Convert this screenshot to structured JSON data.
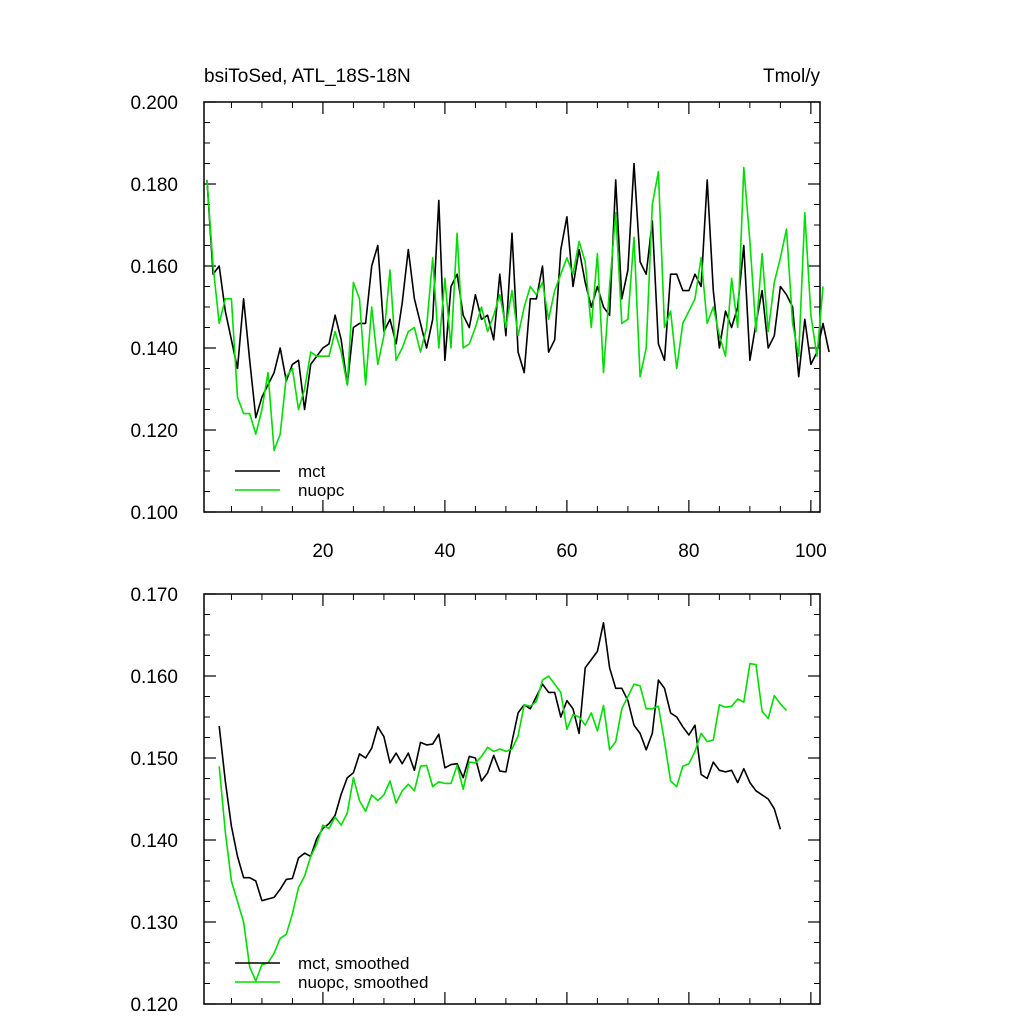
{
  "chart_data": [
    {
      "type": "line",
      "title": "bsiToSed, ATL_18S-18N",
      "units": "Tmol/y",
      "xlim": [
        0.5,
        101.5
      ],
      "ylim": [
        0.1,
        0.2
      ],
      "x_ticks": [
        20,
        40,
        60,
        80,
        100
      ],
      "y_ticks": [
        "0.100",
        "0.120",
        "0.140",
        "0.160",
        "0.180",
        "0.200"
      ],
      "legend_position": "bottom-left",
      "series": [
        {
          "name": "mct",
          "color": "#000000",
          "x_start": 1,
          "values": [
            0.181,
            0.158,
            0.16,
            0.149,
            0.142,
            0.135,
            0.152,
            0.137,
            0.123,
            0.128,
            0.131,
            0.134,
            0.14,
            0.132,
            0.136,
            0.137,
            0.125,
            0.136,
            0.138,
            0.14,
            0.141,
            0.148,
            0.142,
            0.131,
            0.145,
            0.146,
            0.146,
            0.16,
            0.165,
            0.144,
            0.147,
            0.141,
            0.151,
            0.164,
            0.152,
            0.146,
            0.14,
            0.147,
            0.176,
            0.137,
            0.155,
            0.158,
            0.148,
            0.145,
            0.153,
            0.147,
            0.148,
            0.142,
            0.158,
            0.143,
            0.168,
            0.139,
            0.134,
            0.152,
            0.152,
            0.16,
            0.139,
            0.142,
            0.164,
            0.172,
            0.155,
            0.164,
            0.156,
            0.15,
            0.155,
            0.15,
            0.148,
            0.181,
            0.152,
            0.159,
            0.185,
            0.161,
            0.158,
            0.171,
            0.141,
            0.137,
            0.158,
            0.158,
            0.154,
            0.154,
            0.158,
            0.155,
            0.181,
            0.154,
            0.14,
            0.149,
            0.145,
            0.15,
            0.165,
            0.137,
            0.146,
            0.154,
            0.14,
            0.143,
            0.155,
            0.153,
            0.15,
            0.133,
            0.147,
            0.136,
            0.139,
            0.146,
            0.139
          ]
        },
        {
          "name": "nuopc",
          "color": "#00dd00",
          "x_start": 1,
          "values": [
            0.181,
            0.16,
            0.146,
            0.152,
            0.152,
            0.128,
            0.124,
            0.124,
            0.119,
            0.125,
            0.134,
            0.115,
            0.119,
            0.133,
            0.135,
            0.125,
            0.13,
            0.139,
            0.138,
            0.138,
            0.138,
            0.144,
            0.139,
            0.131,
            0.156,
            0.152,
            0.131,
            0.15,
            0.136,
            0.143,
            0.159,
            0.137,
            0.14,
            0.144,
            0.145,
            0.139,
            0.145,
            0.162,
            0.14,
            0.157,
            0.14,
            0.168,
            0.14,
            0.141,
            0.145,
            0.15,
            0.144,
            0.148,
            0.153,
            0.145,
            0.154,
            0.143,
            0.15,
            0.155,
            0.153,
            0.156,
            0.147,
            0.154,
            0.158,
            0.162,
            0.158,
            0.166,
            0.161,
            0.145,
            0.163,
            0.134,
            0.155,
            0.173,
            0.146,
            0.147,
            0.167,
            0.133,
            0.14,
            0.175,
            0.183,
            0.145,
            0.149,
            0.135,
            0.146,
            0.149,
            0.152,
            0.162,
            0.146,
            0.15,
            0.143,
            0.138,
            0.157,
            0.145,
            0.184,
            0.166,
            0.144,
            0.163,
            0.144,
            0.156,
            0.162,
            0.169,
            0.146,
            0.138,
            0.173,
            0.148,
            0.138,
            0.155
          ]
        }
      ]
    },
    {
      "type": "line",
      "xlim": [
        0.5,
        101.5
      ],
      "ylim": [
        0.12,
        0.17
      ],
      "y_ticks": [
        "0.120",
        "0.130",
        "0.140",
        "0.150",
        "0.160",
        "0.170"
      ],
      "legend_position": "bottom-left",
      "series": [
        {
          "name": "mct, smoothed",
          "color": "#000000",
          "x_start": 3,
          "values": [
            0.1539,
            0.1472,
            0.1417,
            0.138,
            0.1354,
            0.1354,
            0.135,
            0.1326,
            0.1328,
            0.133,
            0.134,
            0.1352,
            0.1353,
            0.1378,
            0.1384,
            0.138,
            0.1402,
            0.1414,
            0.142,
            0.143,
            0.1456,
            0.1476,
            0.1482,
            0.1505,
            0.15,
            0.1512,
            0.1538,
            0.1526,
            0.1494,
            0.1506,
            0.1493,
            0.1506,
            0.1485,
            0.1519,
            0.1516,
            0.1517,
            0.1529,
            0.1488,
            0.1492,
            0.1493,
            0.1476,
            0.1502,
            0.15,
            0.1472,
            0.1482,
            0.1503,
            0.1484,
            0.1483,
            0.152,
            0.1555,
            0.1565,
            0.156,
            0.1575,
            0.159,
            0.158,
            0.158,
            0.155,
            0.157,
            0.156,
            0.153,
            0.161,
            0.162,
            0.163,
            0.1665,
            0.161,
            0.1585,
            0.1585,
            0.157,
            0.154,
            0.153,
            0.151,
            0.153,
            0.1595,
            0.1585,
            0.1555,
            0.155,
            0.1538,
            0.1528,
            0.154,
            0.148,
            0.1475,
            0.1495,
            0.1485,
            0.1483,
            0.1485,
            0.147,
            0.1487,
            0.147,
            0.146,
            0.1455,
            0.145,
            0.1438,
            0.1413
          ]
        },
        {
          "name": "nuopc, smoothed",
          "color": "#00dd00",
          "x_start": 3,
          "values": [
            0.149,
            0.141,
            0.135,
            0.1325,
            0.13,
            0.1245,
            0.1228,
            0.1248,
            0.125,
            0.1262,
            0.128,
            0.1285,
            0.131,
            0.1342,
            0.1356,
            0.138,
            0.1395,
            0.1418,
            0.1414,
            0.1428,
            0.1418,
            0.1433,
            0.1476,
            0.1448,
            0.1435,
            0.1455,
            0.1448,
            0.1455,
            0.1472,
            0.1445,
            0.146,
            0.1468,
            0.146,
            0.149,
            0.1491,
            0.1465,
            0.1471,
            0.1469,
            0.1469,
            0.1491,
            0.1462,
            0.1495,
            0.1494,
            0.1502,
            0.1513,
            0.1508,
            0.1511,
            0.1508,
            0.1511,
            0.1527,
            0.1565,
            0.1563,
            0.1569,
            0.1595,
            0.16,
            0.159,
            0.158,
            0.1535,
            0.1553,
            0.155,
            0.154,
            0.1555,
            0.1533,
            0.1564,
            0.151,
            0.152,
            0.156,
            0.1575,
            0.159,
            0.1588,
            0.156,
            0.156,
            0.1563,
            0.152,
            0.1472,
            0.1465,
            0.149,
            0.1493,
            0.1508,
            0.153,
            0.152,
            0.1522,
            0.1565,
            0.1562,
            0.1563,
            0.1572,
            0.1568,
            0.1615,
            0.1614,
            0.1557,
            0.1548,
            0.1576,
            0.1566,
            0.1558
          ]
        }
      ]
    }
  ]
}
